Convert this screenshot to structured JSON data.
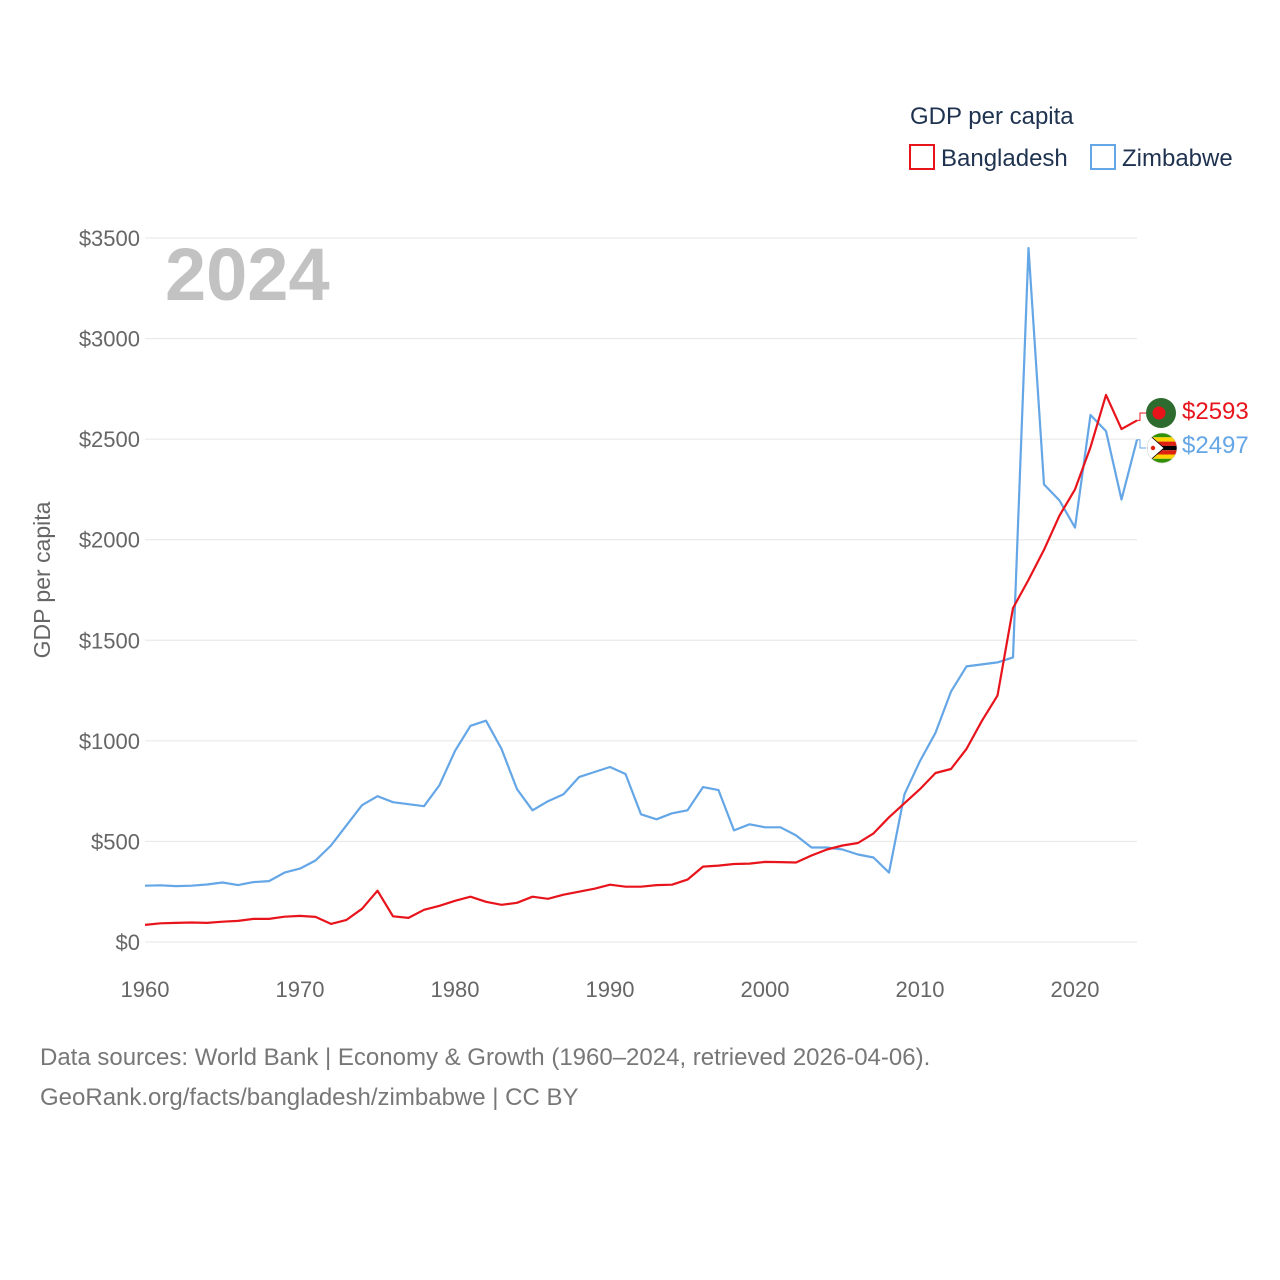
{
  "colors": {
    "bangladesh": "#e8141c",
    "zimbabwe": "#64a6e6",
    "grid": "#e6e6e6",
    "axis_text": "#666666",
    "legend_text": "#1f3350",
    "watermark": "#c2c2c2"
  },
  "chart_data": {
    "type": "line",
    "title": "GDP per capita",
    "year_watermark": "2024",
    "ylabel": "GDP per capita",
    "xlabel": "",
    "xlim": [
      1960,
      2024
    ],
    "ylim": [
      0,
      3500
    ],
    "x_ticks": [
      1960,
      1970,
      1980,
      1990,
      2000,
      2010,
      2020
    ],
    "x_tick_labels": [
      "1960",
      "1970",
      "1980",
      "1990",
      "2000",
      "2010",
      "2020"
    ],
    "y_ticks": [
      0,
      500,
      1000,
      1500,
      2000,
      2500,
      3000,
      3500
    ],
    "y_tick_labels": [
      "$0",
      "$500",
      "$1000",
      "$1500",
      "$2000",
      "$2500",
      "$3000",
      "$3500"
    ],
    "legend": [
      "Bangladesh",
      "Zimbabwe"
    ],
    "x": [
      1960,
      1961,
      1962,
      1963,
      1964,
      1965,
      1966,
      1967,
      1968,
      1969,
      1970,
      1971,
      1972,
      1973,
      1974,
      1975,
      1976,
      1977,
      1978,
      1979,
      1980,
      1981,
      1982,
      1983,
      1984,
      1985,
      1986,
      1987,
      1988,
      1989,
      1990,
      1991,
      1992,
      1993,
      1994,
      1995,
      1996,
      1997,
      1998,
      1999,
      2000,
      2001,
      2002,
      2003,
      2004,
      2005,
      2006,
      2007,
      2008,
      2009,
      2010,
      2011,
      2012,
      2013,
      2014,
      2015,
      2016,
      2017,
      2018,
      2019,
      2020,
      2021,
      2022,
      2023,
      2024
    ],
    "series": [
      {
        "name": "Bangladesh",
        "end_label": "$2593",
        "flag_icon": "bangladesh-flag-icon",
        "values": [
          85,
          93,
          95,
          97,
          95,
          101,
          105,
          115,
          115,
          126,
          130,
          125,
          90,
          110,
          165,
          255,
          128,
          120,
          160,
          180,
          205,
          225,
          200,
          185,
          195,
          225,
          215,
          235,
          250,
          265,
          285,
          275,
          275,
          283,
          285,
          310,
          375,
          380,
          388,
          390,
          398,
          397,
          395,
          430,
          460,
          480,
          492,
          540,
          620,
          690,
          760,
          840,
          860,
          960,
          1100,
          1225,
          1660,
          1800,
          1950,
          2120,
          2250,
          2460,
          2720,
          2550,
          2593
        ]
      },
      {
        "name": "Zimbabwe",
        "end_label": "$2497",
        "flag_icon": "zimbabwe-flag-icon",
        "values": [
          280,
          282,
          278,
          280,
          286,
          296,
          283,
          298,
          303,
          345,
          365,
          405,
          480,
          580,
          680,
          725,
          695,
          685,
          675,
          780,
          950,
          1075,
          1100,
          960,
          760,
          655,
          700,
          735,
          820,
          845,
          870,
          835,
          635,
          610,
          640,
          655,
          770,
          755,
          555,
          585,
          570,
          570,
          530,
          470,
          470,
          460,
          435,
          420,
          345,
          735,
          900,
          1040,
          1245,
          1370,
          1380,
          1390,
          1415,
          3450,
          2275,
          2195,
          2060,
          2620,
          2540,
          2200,
          2497
        ]
      }
    ]
  },
  "source_lines": [
    "Data sources: World Bank | Economy & Growth (1960–2024, retrieved 2026-04-06).",
    "GeoRank.org/facts/bangladesh/zimbabwe | CC BY"
  ]
}
